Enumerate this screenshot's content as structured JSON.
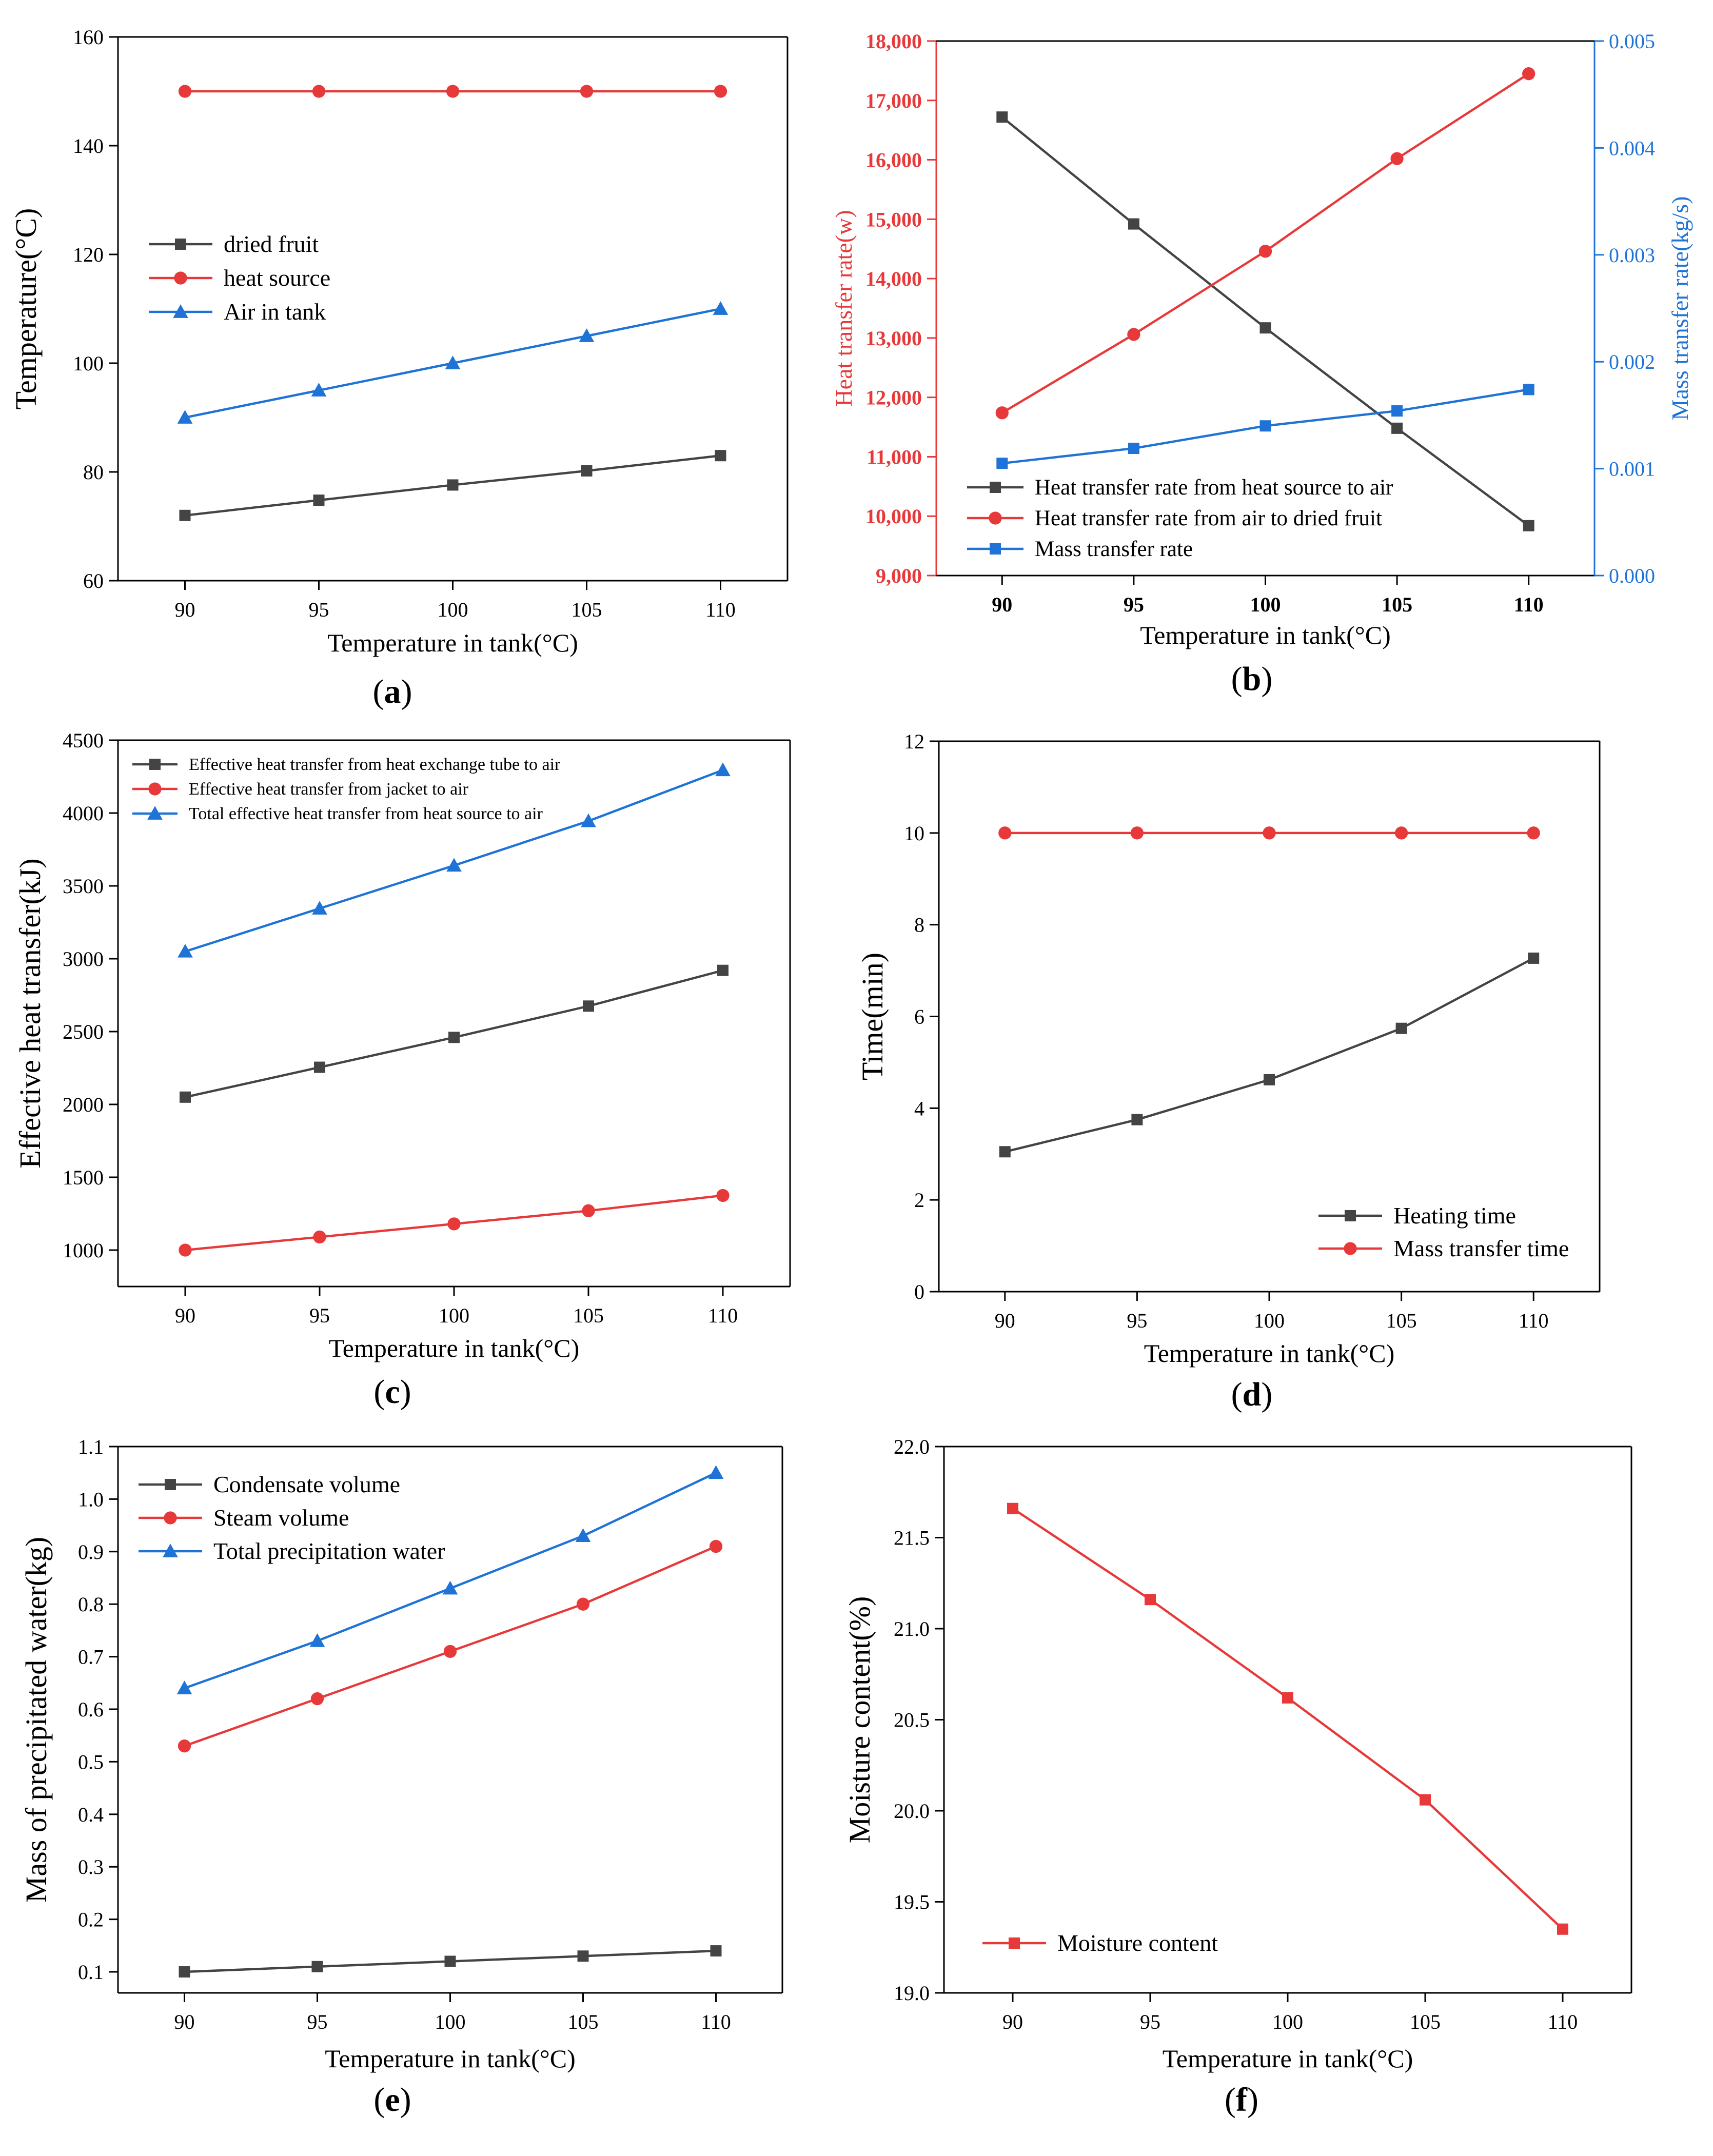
{
  "colors": {
    "black": "#444444",
    "red": "#e8393a",
    "blue": "#1f73d6",
    "frame": "#000000"
  },
  "chart_data": [
    {
      "id": "a",
      "panel_label": "a",
      "type": "line",
      "xlabel": "Temperature in tank(°C)",
      "ylabel": "Temperature(°C)",
      "x": [
        90,
        95,
        100,
        105,
        110
      ],
      "xticks": [
        "90",
        "95",
        "100",
        "105",
        "110"
      ],
      "xlim": [
        87.5,
        112.5
      ],
      "ylim": [
        60,
        160
      ],
      "yticks": [
        "60",
        "80",
        "100",
        "120",
        "140",
        "160"
      ],
      "grid": false,
      "legend_position": "upper-left",
      "series": [
        {
          "name": "dried fruit",
          "color": "#444444",
          "marker": "square",
          "values": [
            72,
            74.8,
            77.6,
            80.2,
            83
          ]
        },
        {
          "name": "heat source",
          "color": "#e8393a",
          "marker": "circle",
          "values": [
            150,
            150,
            150,
            150,
            150
          ]
        },
        {
          "name": "Air in tank",
          "color": "#1f73d6",
          "marker": "triangle",
          "values": [
            90,
            95,
            100,
            105,
            110
          ]
        }
      ]
    },
    {
      "id": "b",
      "panel_label": "b",
      "type": "line",
      "xlabel": "Temperature in tank(°C)",
      "ylabel": "Heat transfer rate(w)",
      "ylabel_right": "Mass transfer rate(kg/s)",
      "x": [
        90,
        95,
        100,
        105,
        110
      ],
      "xticks": [
        "90",
        "95",
        "100",
        "105",
        "110"
      ],
      "xlim": [
        87.5,
        112.5
      ],
      "ylim": [
        9000,
        18000
      ],
      "yticks": [
        "9,000",
        "10,000",
        "11,000",
        "12,000",
        "13,000",
        "14,000",
        "15,000",
        "16,000",
        "17,000",
        "18,000"
      ],
      "ylim_right": [
        0,
        0.005
      ],
      "yticks_right": [
        "0.000",
        "0.001",
        "0.002",
        "0.003",
        "0.004",
        "0.005"
      ],
      "grid": false,
      "legend_position": "lower-left",
      "series": [
        {
          "name": "Heat transfer rate from heat source to air",
          "color": "#444444",
          "marker": "square",
          "axis": "left",
          "values": [
            16720,
            14920,
            13170,
            11480,
            9840
          ]
        },
        {
          "name": "Heat transfer rate from air to dried fruit",
          "color": "#e8393a",
          "marker": "circle",
          "axis": "left",
          "values": [
            11740,
            13060,
            14460,
            16020,
            17450
          ]
        },
        {
          "name": "Mass transfer rate",
          "color": "#1f73d6",
          "marker": "square",
          "axis": "right",
          "values": [
            0.00105,
            0.00119,
            0.0014,
            0.00154,
            0.00174
          ]
        }
      ]
    },
    {
      "id": "c",
      "panel_label": "c",
      "type": "line",
      "xlabel": "Temperature in tank(°C)",
      "ylabel": "Effective heat transfer(kJ)",
      "x": [
        90,
        95,
        100,
        105,
        110
      ],
      "xticks": [
        "90",
        "95",
        "100",
        "105",
        "110"
      ],
      "xlim": [
        87.5,
        112.5
      ],
      "ylim": [
        750,
        4500
      ],
      "yticks": [
        "1000",
        "1500",
        "2000",
        "2500",
        "3000",
        "3500",
        "4000",
        "4500"
      ],
      "grid": false,
      "legend_position": "upper-left",
      "series": [
        {
          "name": "Effective heat transfer from heat exchange tube to air",
          "color": "#444444",
          "marker": "square",
          "values": [
            2050,
            2255,
            2460,
            2675,
            2920
          ]
        },
        {
          "name": "Effective heat transfer from jacket to air",
          "color": "#e8393a",
          "marker": "circle",
          "values": [
            1000,
            1090,
            1180,
            1270,
            1375
          ]
        },
        {
          "name": "Total effective heat transfer from heat source to air",
          "color": "#1f73d6",
          "marker": "triangle",
          "values": [
            3050,
            3345,
            3640,
            3945,
            4295
          ]
        }
      ]
    },
    {
      "id": "d",
      "panel_label": "d",
      "type": "line",
      "xlabel": "Temperature in tank(°C)",
      "ylabel": "Time(min)",
      "x": [
        90,
        95,
        100,
        105,
        110
      ],
      "xticks": [
        "90",
        "95",
        "100",
        "105",
        "110"
      ],
      "xlim": [
        87.5,
        112.5
      ],
      "ylim": [
        0,
        12
      ],
      "yticks": [
        "0",
        "2",
        "4",
        "6",
        "8",
        "10",
        "12"
      ],
      "grid": false,
      "legend_position": "lower-right",
      "series": [
        {
          "name": "Heating time",
          "color": "#444444",
          "marker": "square",
          "values": [
            3.05,
            3.75,
            4.62,
            5.74,
            7.27
          ]
        },
        {
          "name": "Mass transfer time",
          "color": "#e8393a",
          "marker": "circle",
          "values": [
            10,
            10,
            10,
            10,
            10
          ]
        }
      ]
    },
    {
      "id": "e",
      "panel_label": "e",
      "type": "line",
      "xlabel": "Temperature in tank(°C)",
      "ylabel": "Mass of precipitated water(kg)",
      "x": [
        90,
        95,
        100,
        105,
        110
      ],
      "xticks": [
        "90",
        "95",
        "100",
        "105",
        "110"
      ],
      "xlim": [
        87.5,
        112.5
      ],
      "ylim": [
        0.06,
        1.1
      ],
      "yticks": [
        "0.1",
        "0.2",
        "0.3",
        "0.4",
        "0.5",
        "0.6",
        "0.7",
        "0.8",
        "0.9",
        "1.0",
        "1.1"
      ],
      "grid": false,
      "legend_position": "upper-left",
      "series": [
        {
          "name": "Condensate volume",
          "color": "#444444",
          "marker": "square",
          "values": [
            0.1,
            0.11,
            0.12,
            0.13,
            0.14
          ]
        },
        {
          "name": "Steam volume",
          "color": "#e8393a",
          "marker": "circle",
          "values": [
            0.53,
            0.62,
            0.71,
            0.8,
            0.91
          ]
        },
        {
          "name": "Total precipitation water",
          "color": "#1f73d6",
          "marker": "triangle",
          "values": [
            0.64,
            0.73,
            0.83,
            0.93,
            1.05
          ]
        }
      ]
    },
    {
      "id": "f",
      "panel_label": "f",
      "type": "line",
      "xlabel": "Temperature in tank(°C)",
      "ylabel": "Moisture content(%)",
      "x": [
        90,
        95,
        100,
        105,
        110
      ],
      "xticks": [
        "90",
        "95",
        "100",
        "105",
        "110"
      ],
      "xlim": [
        87.5,
        112.5
      ],
      "ylim": [
        19.0,
        22.0
      ],
      "yticks": [
        "19.0",
        "19.5",
        "20.0",
        "20.5",
        "21.0",
        "21.5",
        "22.0"
      ],
      "grid": false,
      "legend_position": "lower-left",
      "series": [
        {
          "name": "Moisture content",
          "color": "#e8393a",
          "marker": "square",
          "values": [
            21.66,
            21.16,
            20.62,
            20.06,
            19.35
          ]
        }
      ]
    }
  ]
}
